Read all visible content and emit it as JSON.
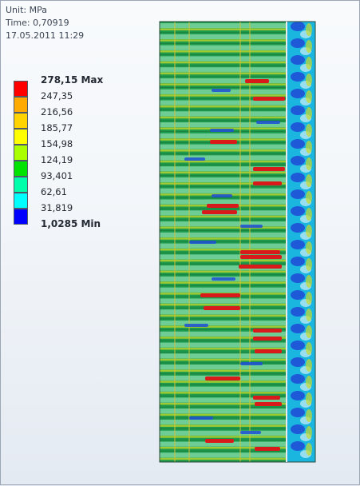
{
  "header": {
    "unit": "Unit: MPa",
    "time": "Time: 0,70919",
    "date": "17.05.2011 11:29"
  },
  "legend": {
    "items": [
      {
        "label": "278,15 Max",
        "color": "#ff0000",
        "bold": true
      },
      {
        "label": "247,35",
        "color": "#ffaa00",
        "bold": false
      },
      {
        "label": "216,56",
        "color": "#ffd400",
        "bold": false
      },
      {
        "label": "185,77",
        "color": "#ffff00",
        "bold": false
      },
      {
        "label": "154,98",
        "color": "#aaff00",
        "bold": false
      },
      {
        "label": "124,19",
        "color": "#00e200",
        "bold": false
      },
      {
        "label": "93,401",
        "color": "#00ffaa",
        "bold": false
      },
      {
        "label": "62,61",
        "color": "#00ffff",
        "bold": false
      },
      {
        "label": "31,819",
        "color": "#00aaff",
        "bold": false
      },
      {
        "label": "1,0285 Min",
        "color": "#0000ff",
        "bold": true
      }
    ]
  },
  "model": {
    "description_icon": "stress-contour-plot",
    "colors": {
      "base": "#1e9a4c",
      "band": "#7cd6a2",
      "mid": "#c9d92b",
      "hot": "#d81a1a",
      "cold": "#1f4fd6",
      "edge": "#1ab6e0"
    }
  }
}
